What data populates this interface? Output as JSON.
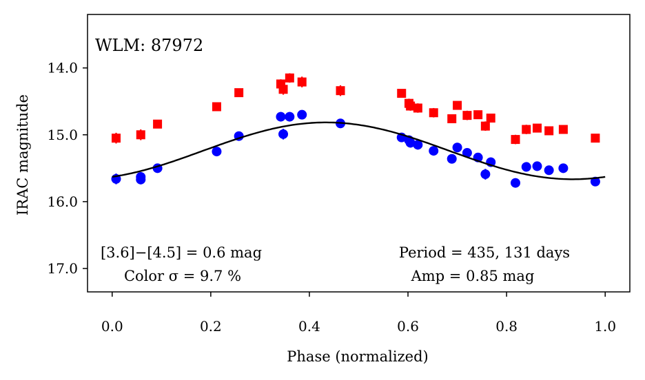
{
  "chart_data": {
    "type": "scatter",
    "title": "WLM: 87972",
    "xlabel": "Phase (normalized)",
    "ylabel": "IRAC magnitude",
    "xlim": [
      -0.05,
      1.05
    ],
    "ylim": [
      17.35,
      13.2
    ],
    "y_inverted": true,
    "xticks": [
      0.0,
      0.2,
      0.4,
      0.6,
      0.8,
      1.0
    ],
    "xtick_labels": [
      "0.0",
      "0.2",
      "0.4",
      "0.6",
      "0.8",
      "1.0"
    ],
    "yticks": [
      14.0,
      15.0,
      16.0,
      17.0
    ],
    "ytick_labels": [
      "14.0",
      "15.0",
      "16.0",
      "17.0"
    ],
    "grid": false,
    "series": [
      {
        "name": "[3.6]",
        "marker": "circle",
        "color": "#0000ff",
        "points": [
          {
            "x": 0.008,
            "y": 15.66,
            "err": 0.08
          },
          {
            "x": 0.058,
            "y": 15.63,
            "err": 0.07
          },
          {
            "x": 0.058,
            "y": 15.67,
            "err": 0.07
          },
          {
            "x": 0.092,
            "y": 15.5,
            "err": 0.0
          },
          {
            "x": 0.212,
            "y": 15.25,
            "err": 0.0
          },
          {
            "x": 0.257,
            "y": 15.02,
            "err": 0.0
          },
          {
            "x": 0.342,
            "y": 14.73,
            "err": 0.07
          },
          {
            "x": 0.347,
            "y": 14.99,
            "err": 0.08
          },
          {
            "x": 0.36,
            "y": 14.73,
            "err": 0.07
          },
          {
            "x": 0.385,
            "y": 14.7,
            "err": 0.0
          },
          {
            "x": 0.463,
            "y": 14.83,
            "err": 0.07
          },
          {
            "x": 0.587,
            "y": 15.04,
            "err": 0.0
          },
          {
            "x": 0.602,
            "y": 15.08,
            "err": 0.07
          },
          {
            "x": 0.605,
            "y": 15.12,
            "err": 0.07
          },
          {
            "x": 0.62,
            "y": 15.15,
            "err": 0.07
          },
          {
            "x": 0.652,
            "y": 15.24,
            "err": 0.07
          },
          {
            "x": 0.689,
            "y": 15.36,
            "err": 0.0
          },
          {
            "x": 0.7,
            "y": 15.19,
            "err": 0.07
          },
          {
            "x": 0.72,
            "y": 15.27,
            "err": 0.0
          },
          {
            "x": 0.742,
            "y": 15.34,
            "err": 0.0
          },
          {
            "x": 0.757,
            "y": 15.59,
            "err": 0.08
          },
          {
            "x": 0.768,
            "y": 15.41,
            "err": 0.07
          },
          {
            "x": 0.818,
            "y": 15.72,
            "err": 0.07
          },
          {
            "x": 0.84,
            "y": 15.48,
            "err": 0.07
          },
          {
            "x": 0.862,
            "y": 15.47,
            "err": 0.07
          },
          {
            "x": 0.886,
            "y": 15.53,
            "err": 0.07
          },
          {
            "x": 0.915,
            "y": 15.5,
            "err": 0.07
          },
          {
            "x": 0.98,
            "y": 15.7,
            "err": 0.0
          }
        ]
      },
      {
        "name": "[4.5]",
        "marker": "square",
        "color": "#ff0000",
        "points": [
          {
            "x": 0.008,
            "y": 15.05,
            "err": 0.08
          },
          {
            "x": 0.058,
            "y": 15.0,
            "err": 0.08
          },
          {
            "x": 0.092,
            "y": 14.84,
            "err": 0.0
          },
          {
            "x": 0.212,
            "y": 14.58,
            "err": 0.0
          },
          {
            "x": 0.257,
            "y": 14.37,
            "err": 0.0
          },
          {
            "x": 0.342,
            "y": 14.24,
            "err": 0.07
          },
          {
            "x": 0.347,
            "y": 14.32,
            "err": 0.08
          },
          {
            "x": 0.36,
            "y": 14.15,
            "err": 0.07
          },
          {
            "x": 0.385,
            "y": 14.21,
            "err": 0.08
          },
          {
            "x": 0.463,
            "y": 14.34,
            "err": 0.08
          },
          {
            "x": 0.587,
            "y": 14.38,
            "err": 0.0
          },
          {
            "x": 0.602,
            "y": 14.53,
            "err": 0.07
          },
          {
            "x": 0.605,
            "y": 14.57,
            "err": 0.07
          },
          {
            "x": 0.62,
            "y": 14.6,
            "err": 0.07
          },
          {
            "x": 0.652,
            "y": 14.67,
            "err": 0.07
          },
          {
            "x": 0.689,
            "y": 14.76,
            "err": 0.0
          },
          {
            "x": 0.7,
            "y": 14.56,
            "err": 0.0
          },
          {
            "x": 0.72,
            "y": 14.71,
            "err": 0.07
          },
          {
            "x": 0.742,
            "y": 14.7,
            "err": 0.0
          },
          {
            "x": 0.757,
            "y": 14.87,
            "err": 0.07
          },
          {
            "x": 0.768,
            "y": 14.75,
            "err": 0.0
          },
          {
            "x": 0.818,
            "y": 15.07,
            "err": 0.07
          },
          {
            "x": 0.84,
            "y": 14.92,
            "err": 0.07
          },
          {
            "x": 0.862,
            "y": 14.9,
            "err": 0.0
          },
          {
            "x": 0.886,
            "y": 14.94,
            "err": 0.0
          },
          {
            "x": 0.915,
            "y": 14.92,
            "err": 0.0
          },
          {
            "x": 0.98,
            "y": 15.05,
            "err": 0.0
          }
        ]
      }
    ],
    "model_curve": {
      "name": "fit",
      "color": "#000000",
      "mean_mag": 15.24,
      "semi_amplitude": 0.425,
      "peak_phase": 0.434,
      "x_range": [
        0.0,
        1.0
      ]
    },
    "annotations": {
      "color_diff": "[3.6]−[4.5] = 0.6 mag",
      "color_sigma": "Color σ = 9.7 %",
      "period": "Period = 435, 131 days",
      "amp": "Amp = 0.85 mag"
    }
  }
}
